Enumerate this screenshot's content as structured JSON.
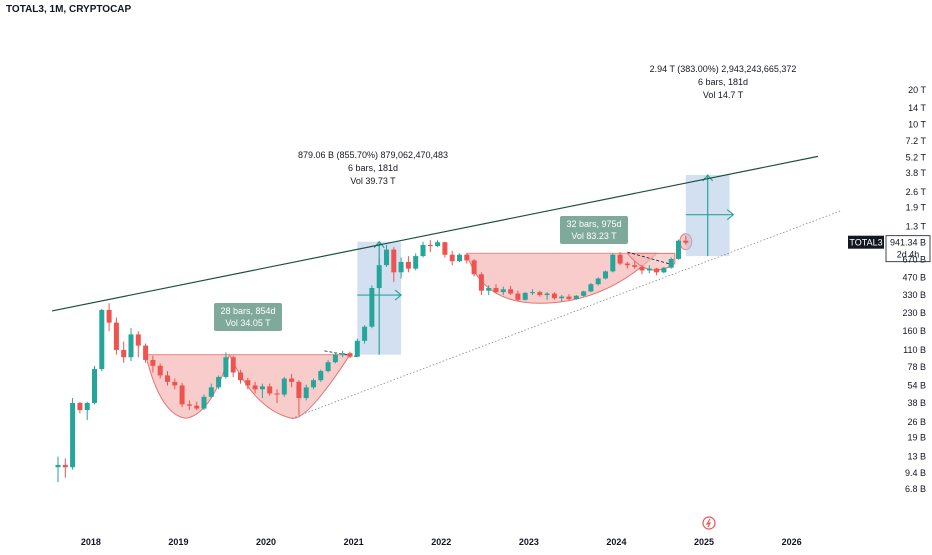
{
  "symbol": "TOTAL3, 1M, CRYPTOCAP",
  "accent": {
    "up": "#26a69a",
    "down": "#ef5350",
    "measure_fill": "#aec6e8",
    "cup_fill": "#f4b6b4",
    "trendline": "#1b4f3e",
    "price_tag": "#131722"
  },
  "chart_data": {
    "type": "candlestick",
    "title": "TOTAL3, 1M, CRYPTOCAP",
    "y_scale": "log",
    "y_ticks": [
      "20 T",
      "14 T",
      "10 T",
      "7.2 T",
      "5.2 T",
      "3.8 T",
      "2.6 T",
      "1.9 T",
      "1.3 T",
      "670 B",
      "470 B",
      "330 B",
      "230 B",
      "160 B",
      "110 B",
      "78 B",
      "54 B",
      "38 B",
      "26 B",
      "19 B",
      "13 B",
      "9.4 B",
      "6.8 B"
    ],
    "x_ticks": [
      "2018",
      "2019",
      "2020",
      "2021",
      "2022",
      "2023",
      "2024",
      "2025",
      "2026"
    ],
    "last_price": {
      "label": "TOTAL3",
      "value": "941.34 B",
      "countdown": "2d 4h"
    },
    "candles_note": "Monthly candles, values estimated from the log axis (USD billions). t = months since Aug 2017.",
    "candles": [
      {
        "t": 0,
        "o": 10.5,
        "h": 13,
        "l": 7.8,
        "c": 11
      },
      {
        "t": 1,
        "o": 11,
        "h": 12.5,
        "l": 8.5,
        "c": 10.5
      },
      {
        "t": 2,
        "o": 10.5,
        "h": 42,
        "l": 10,
        "c": 38
      },
      {
        "t": 3,
        "o": 38,
        "h": 39,
        "l": 31,
        "c": 33
      },
      {
        "t": 4,
        "o": 33,
        "h": 39,
        "l": 27,
        "c": 38
      },
      {
        "t": 5,
        "o": 38,
        "h": 80,
        "l": 37,
        "c": 75
      },
      {
        "t": 6,
        "o": 75,
        "h": 250,
        "l": 72,
        "c": 245
      },
      {
        "t": 7,
        "o": 245,
        "h": 280,
        "l": 160,
        "c": 190
      },
      {
        "t": 8,
        "o": 190,
        "h": 210,
        "l": 100,
        "c": 110
      },
      {
        "t": 9,
        "o": 110,
        "h": 130,
        "l": 85,
        "c": 95
      },
      {
        "t": 10,
        "o": 95,
        "h": 170,
        "l": 88,
        "c": 150
      },
      {
        "t": 11,
        "o": 150,
        "h": 160,
        "l": 95,
        "c": 120
      },
      {
        "t": 12,
        "o": 120,
        "h": 125,
        "l": 85,
        "c": 90
      },
      {
        "t": 13,
        "o": 90,
        "h": 98,
        "l": 70,
        "c": 80
      },
      {
        "t": 14,
        "o": 80,
        "h": 84,
        "l": 62,
        "c": 66
      },
      {
        "t": 15,
        "o": 66,
        "h": 72,
        "l": 54,
        "c": 58
      },
      {
        "t": 16,
        "o": 58,
        "h": 62,
        "l": 50,
        "c": 54
      },
      {
        "t": 17,
        "o": 54,
        "h": 57,
        "l": 35,
        "c": 37
      },
      {
        "t": 18,
        "o": 37,
        "h": 40,
        "l": 33,
        "c": 36
      },
      {
        "t": 19,
        "o": 36,
        "h": 39,
        "l": 33,
        "c": 34
      },
      {
        "t": 20,
        "o": 34,
        "h": 45,
        "l": 33,
        "c": 43
      },
      {
        "t": 21,
        "o": 43,
        "h": 56,
        "l": 42,
        "c": 52
      },
      {
        "t": 22,
        "o": 52,
        "h": 66,
        "l": 50,
        "c": 64
      },
      {
        "t": 23,
        "o": 64,
        "h": 105,
        "l": 62,
        "c": 95
      },
      {
        "t": 24,
        "o": 95,
        "h": 98,
        "l": 64,
        "c": 70
      },
      {
        "t": 25,
        "o": 70,
        "h": 74,
        "l": 56,
        "c": 60
      },
      {
        "t": 26,
        "o": 60,
        "h": 63,
        "l": 50,
        "c": 54
      },
      {
        "t": 27,
        "o": 54,
        "h": 58,
        "l": 46,
        "c": 50
      },
      {
        "t": 28,
        "o": 50,
        "h": 56,
        "l": 42,
        "c": 53
      },
      {
        "t": 29,
        "o": 53,
        "h": 56,
        "l": 44,
        "c": 46
      },
      {
        "t": 30,
        "o": 46,
        "h": 50,
        "l": 38,
        "c": 45
      },
      {
        "t": 31,
        "o": 45,
        "h": 64,
        "l": 43,
        "c": 62
      },
      {
        "t": 32,
        "o": 62,
        "h": 68,
        "l": 52,
        "c": 58
      },
      {
        "t": 33,
        "o": 58,
        "h": 60,
        "l": 30,
        "c": 42
      },
      {
        "t": 34,
        "o": 42,
        "h": 55,
        "l": 40,
        "c": 52
      },
      {
        "t": 35,
        "o": 52,
        "h": 62,
        "l": 50,
        "c": 60
      },
      {
        "t": 36,
        "o": 60,
        "h": 74,
        "l": 58,
        "c": 72
      },
      {
        "t": 37,
        "o": 72,
        "h": 90,
        "l": 70,
        "c": 86
      },
      {
        "t": 38,
        "o": 86,
        "h": 105,
        "l": 84,
        "c": 100
      },
      {
        "t": 39,
        "o": 100,
        "h": 108,
        "l": 95,
        "c": 103
      },
      {
        "t": 40,
        "o": 103,
        "h": 106,
        "l": 93,
        "c": 96
      },
      {
        "t": 41,
        "o": 96,
        "h": 138,
        "l": 95,
        "c": 132
      },
      {
        "t": 42,
        "o": 132,
        "h": 180,
        "l": 125,
        "c": 175
      },
      {
        "t": 43,
        "o": 175,
        "h": 400,
        "l": 170,
        "c": 380
      },
      {
        "t": 44,
        "o": 380,
        "h": 700,
        "l": 370,
        "c": 600
      },
      {
        "t": 45,
        "o": 600,
        "h": 900,
        "l": 580,
        "c": 820
      },
      {
        "t": 46,
        "o": 820,
        "h": 860,
        "l": 430,
        "c": 520
      },
      {
        "t": 47,
        "o": 520,
        "h": 700,
        "l": 460,
        "c": 640
      },
      {
        "t": 48,
        "o": 640,
        "h": 720,
        "l": 520,
        "c": 560
      },
      {
        "t": 49,
        "o": 560,
        "h": 760,
        "l": 540,
        "c": 720
      },
      {
        "t": 50,
        "o": 720,
        "h": 960,
        "l": 700,
        "c": 900
      },
      {
        "t": 51,
        "o": 900,
        "h": 990,
        "l": 780,
        "c": 880
      },
      {
        "t": 52,
        "o": 880,
        "h": 990,
        "l": 860,
        "c": 950
      },
      {
        "t": 53,
        "o": 950,
        "h": 960,
        "l": 700,
        "c": 740
      },
      {
        "t": 54,
        "o": 740,
        "h": 800,
        "l": 600,
        "c": 650
      },
      {
        "t": 55,
        "o": 650,
        "h": 760,
        "l": 640,
        "c": 740
      },
      {
        "t": 56,
        "o": 740,
        "h": 760,
        "l": 620,
        "c": 660
      },
      {
        "t": 57,
        "o": 660,
        "h": 680,
        "l": 480,
        "c": 500
      },
      {
        "t": 58,
        "o": 500,
        "h": 520,
        "l": 330,
        "c": 360
      },
      {
        "t": 59,
        "o": 360,
        "h": 400,
        "l": 330,
        "c": 380
      },
      {
        "t": 60,
        "o": 380,
        "h": 410,
        "l": 340,
        "c": 350
      },
      {
        "t": 61,
        "o": 350,
        "h": 390,
        "l": 330,
        "c": 370
      },
      {
        "t": 62,
        "o": 370,
        "h": 395,
        "l": 330,
        "c": 340
      },
      {
        "t": 63,
        "o": 340,
        "h": 360,
        "l": 290,
        "c": 300
      },
      {
        "t": 64,
        "o": 300,
        "h": 350,
        "l": 295,
        "c": 345
      },
      {
        "t": 65,
        "o": 345,
        "h": 370,
        "l": 330,
        "c": 350
      },
      {
        "t": 66,
        "o": 350,
        "h": 360,
        "l": 320,
        "c": 330
      },
      {
        "t": 67,
        "o": 330,
        "h": 350,
        "l": 300,
        "c": 340
      },
      {
        "t": 68,
        "o": 340,
        "h": 350,
        "l": 300,
        "c": 310
      },
      {
        "t": 69,
        "o": 310,
        "h": 330,
        "l": 290,
        "c": 320
      },
      {
        "t": 70,
        "o": 320,
        "h": 335,
        "l": 295,
        "c": 305
      },
      {
        "t": 71,
        "o": 305,
        "h": 330,
        "l": 300,
        "c": 325
      },
      {
        "t": 72,
        "o": 325,
        "h": 360,
        "l": 320,
        "c": 355
      },
      {
        "t": 73,
        "o": 355,
        "h": 420,
        "l": 350,
        "c": 410
      },
      {
        "t": 74,
        "o": 410,
        "h": 470,
        "l": 400,
        "c": 460
      },
      {
        "t": 75,
        "o": 460,
        "h": 540,
        "l": 450,
        "c": 530
      },
      {
        "t": 76,
        "o": 530,
        "h": 760,
        "l": 520,
        "c": 740
      },
      {
        "t": 77,
        "o": 740,
        "h": 780,
        "l": 600,
        "c": 620
      },
      {
        "t": 78,
        "o": 620,
        "h": 640,
        "l": 560,
        "c": 600
      },
      {
        "t": 79,
        "o": 600,
        "h": 650,
        "l": 560,
        "c": 580
      },
      {
        "t": 80,
        "o": 580,
        "h": 600,
        "l": 500,
        "c": 540
      },
      {
        "t": 81,
        "o": 540,
        "h": 600,
        "l": 510,
        "c": 560
      },
      {
        "t": 82,
        "o": 560,
        "h": 570,
        "l": 490,
        "c": 520
      },
      {
        "t": 83,
        "o": 520,
        "h": 580,
        "l": 510,
        "c": 570
      },
      {
        "t": 84,
        "o": 570,
        "h": 700,
        "l": 560,
        "c": 680
      },
      {
        "t": 85,
        "o": 680,
        "h": 1000,
        "l": 670,
        "c": 980
      },
      {
        "t": 86,
        "o": 980,
        "h": 1080,
        "l": 900,
        "c": 941
      }
    ]
  },
  "annotations": [
    {
      "id": "cup1",
      "lines": [
        "28 bars, 854d",
        "Vol 34.05 T"
      ]
    },
    {
      "id": "measure1",
      "lines": [
        "879.06 B (855.70%) 879,062,470,483",
        "6 bars, 181d",
        "Vol 39.73 T"
      ]
    },
    {
      "id": "cup2",
      "lines": [
        "32 bars, 975d",
        "Vol 83.23 T"
      ]
    },
    {
      "id": "measure2",
      "lines": [
        "2.94 T (383.00%) 2,943,243,665,372",
        "6 bars, 181d",
        "Vol 14.7 T"
      ]
    }
  ],
  "icons": {
    "watermark": "lightning-bolt-icon"
  }
}
